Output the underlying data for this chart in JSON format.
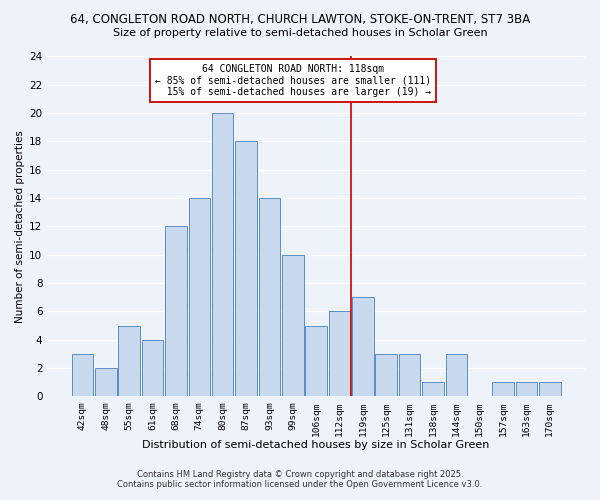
{
  "title_line1": "64, CONGLETON ROAD NORTH, CHURCH LAWTON, STOKE-ON-TRENT, ST7 3BA",
  "title_line2": "Size of property relative to semi-detached houses in Scholar Green",
  "xlabel": "Distribution of semi-detached houses by size in Scholar Green",
  "ylabel": "Number of semi-detached properties",
  "bar_labels": [
    "42sqm",
    "48sqm",
    "55sqm",
    "61sqm",
    "68sqm",
    "74sqm",
    "80sqm",
    "87sqm",
    "93sqm",
    "99sqm",
    "106sqm",
    "112sqm",
    "119sqm",
    "125sqm",
    "131sqm",
    "138sqm",
    "144sqm",
    "150sqm",
    "157sqm",
    "163sqm",
    "170sqm"
  ],
  "bar_values": [
    3,
    2,
    5,
    4,
    12,
    14,
    20,
    18,
    14,
    10,
    5,
    6,
    7,
    3,
    3,
    1,
    3,
    0,
    1,
    1,
    1
  ],
  "bar_color": "#c8d9ed",
  "bar_edgecolor": "#5b8ec4",
  "property_line_idx": 12,
  "annotation_text": "64 CONGLETON ROAD NORTH: 118sqm\n← 85% of semi-detached houses are smaller (111)\n  15% of semi-detached houses are larger (19) →",
  "annotation_box_edgecolor": "#cc0000",
  "vline_color": "#cc0000",
  "ylim": [
    0,
    24
  ],
  "yticks": [
    0,
    2,
    4,
    6,
    8,
    10,
    12,
    14,
    16,
    18,
    20,
    22,
    24
  ],
  "background_color": "#eef2f9",
  "grid_color": "#d8dfe8",
  "footer_line1": "Contains HM Land Registry data © Crown copyright and database right 2025.",
  "footer_line2": "Contains public sector information licensed under the Open Government Licence v3.0."
}
